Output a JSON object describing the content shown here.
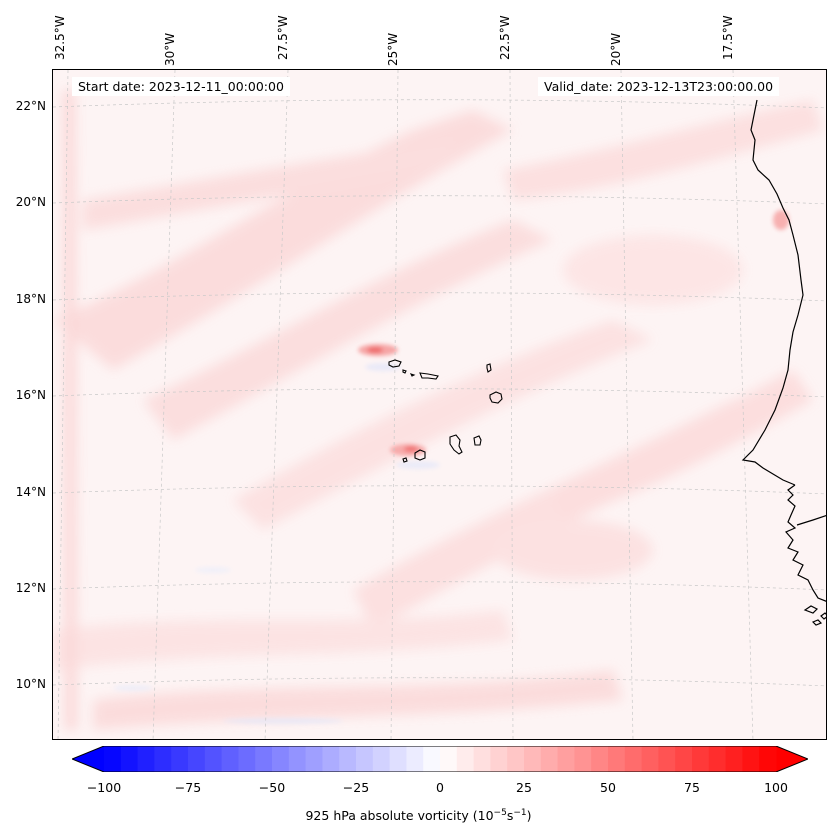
{
  "map": {
    "start_date": "Start date: 2023-12-11_00:00:00",
    "valid_date": "Valid_date: 2023-12-13T23:00:00.00",
    "lon_labels": [
      "32.5°W",
      "30°W",
      "27.5°W",
      "25°W",
      "22.5°W",
      "20°W",
      "17.5°W"
    ],
    "lat_labels": [
      "22°N",
      "20°N",
      "18°N",
      "16°N",
      "14°N",
      "12°N",
      "10°N"
    ],
    "field": "925 hPa absolute vorticity",
    "projection": "lambert-conformal",
    "coastline_color": "#000000",
    "gridline_style": "dashed-light-gray"
  },
  "colorbar": {
    "ticks": [
      "−100",
      "−75",
      "−50",
      "−25",
      "0",
      "25",
      "50",
      "75",
      "100"
    ],
    "label_main": "925 hPa absolute vorticity (10",
    "label_exp1": "−5",
    "label_mid": "s",
    "label_exp2": "−1",
    "label_end": ")",
    "colors": {
      "min": "#0000ff",
      "mid": "#ffffff",
      "max": "#ff0000"
    },
    "range": [
      -100,
      100
    ],
    "levels": 40,
    "extend": "both"
  }
}
